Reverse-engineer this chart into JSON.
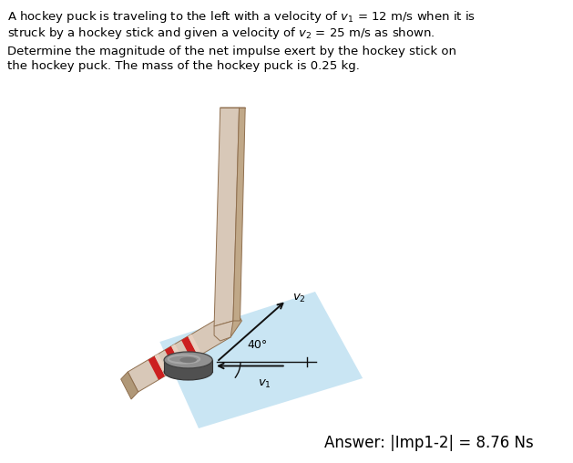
{
  "bg_color": "#ffffff",
  "text_fontsize": 9.5,
  "answer_fontsize": 12,
  "stick_front_color": "#d8c8b8",
  "stick_side_color": "#c0a888",
  "stick_dark_edge": "#907050",
  "stripe_red": "#cc2020",
  "stripe_light": "#e8d0c0",
  "ice_color": "#b8ddf0",
  "puck_top_color": "#909090",
  "puck_side_color": "#505050",
  "puck_rim_color": "#707070",
  "arrow_color": "#111111",
  "v2_label": "$v_2$",
  "v1_label": "$v_1$",
  "angle_label": "40°",
  "answer_text": "Answer: |Imp1-2| = 8.76 Ns"
}
